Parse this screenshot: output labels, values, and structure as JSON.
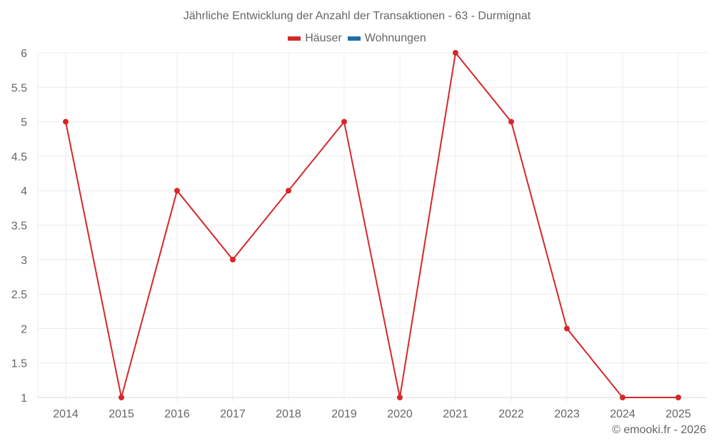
{
  "title": "Jährliche Entwicklung der Anzahl der Transaktionen - 63 - Durmignat",
  "legend": [
    {
      "label": "Häuser",
      "color": "#d62728"
    },
    {
      "label": "Wohnungen",
      "color": "#1f6fa8"
    }
  ],
  "credit": "© emooki.fr - 2026",
  "chart_data": {
    "type": "line",
    "title": "Jährliche Entwicklung der Anzahl der Transaktionen - 63 - Durmignat",
    "xlabel": "",
    "ylabel": "",
    "categories": [
      "2014",
      "2015",
      "2016",
      "2017",
      "2018",
      "2019",
      "2020",
      "2021",
      "2022",
      "2023",
      "2024",
      "2025"
    ],
    "series": [
      {
        "name": "Häuser",
        "color": "#d62728",
        "values": [
          5,
          1,
          4,
          3,
          4,
          5,
          1,
          6,
          5,
          2,
          1,
          1
        ]
      },
      {
        "name": "Wohnungen",
        "color": "#1f6fa8",
        "values": []
      }
    ],
    "yticks": [
      "1",
      "1.5",
      "2",
      "2.5",
      "3",
      "3.5",
      "4",
      "4.5",
      "5",
      "5.5",
      "6"
    ],
    "ylim": [
      1,
      6
    ],
    "grid": true,
    "legend_position": "top"
  }
}
